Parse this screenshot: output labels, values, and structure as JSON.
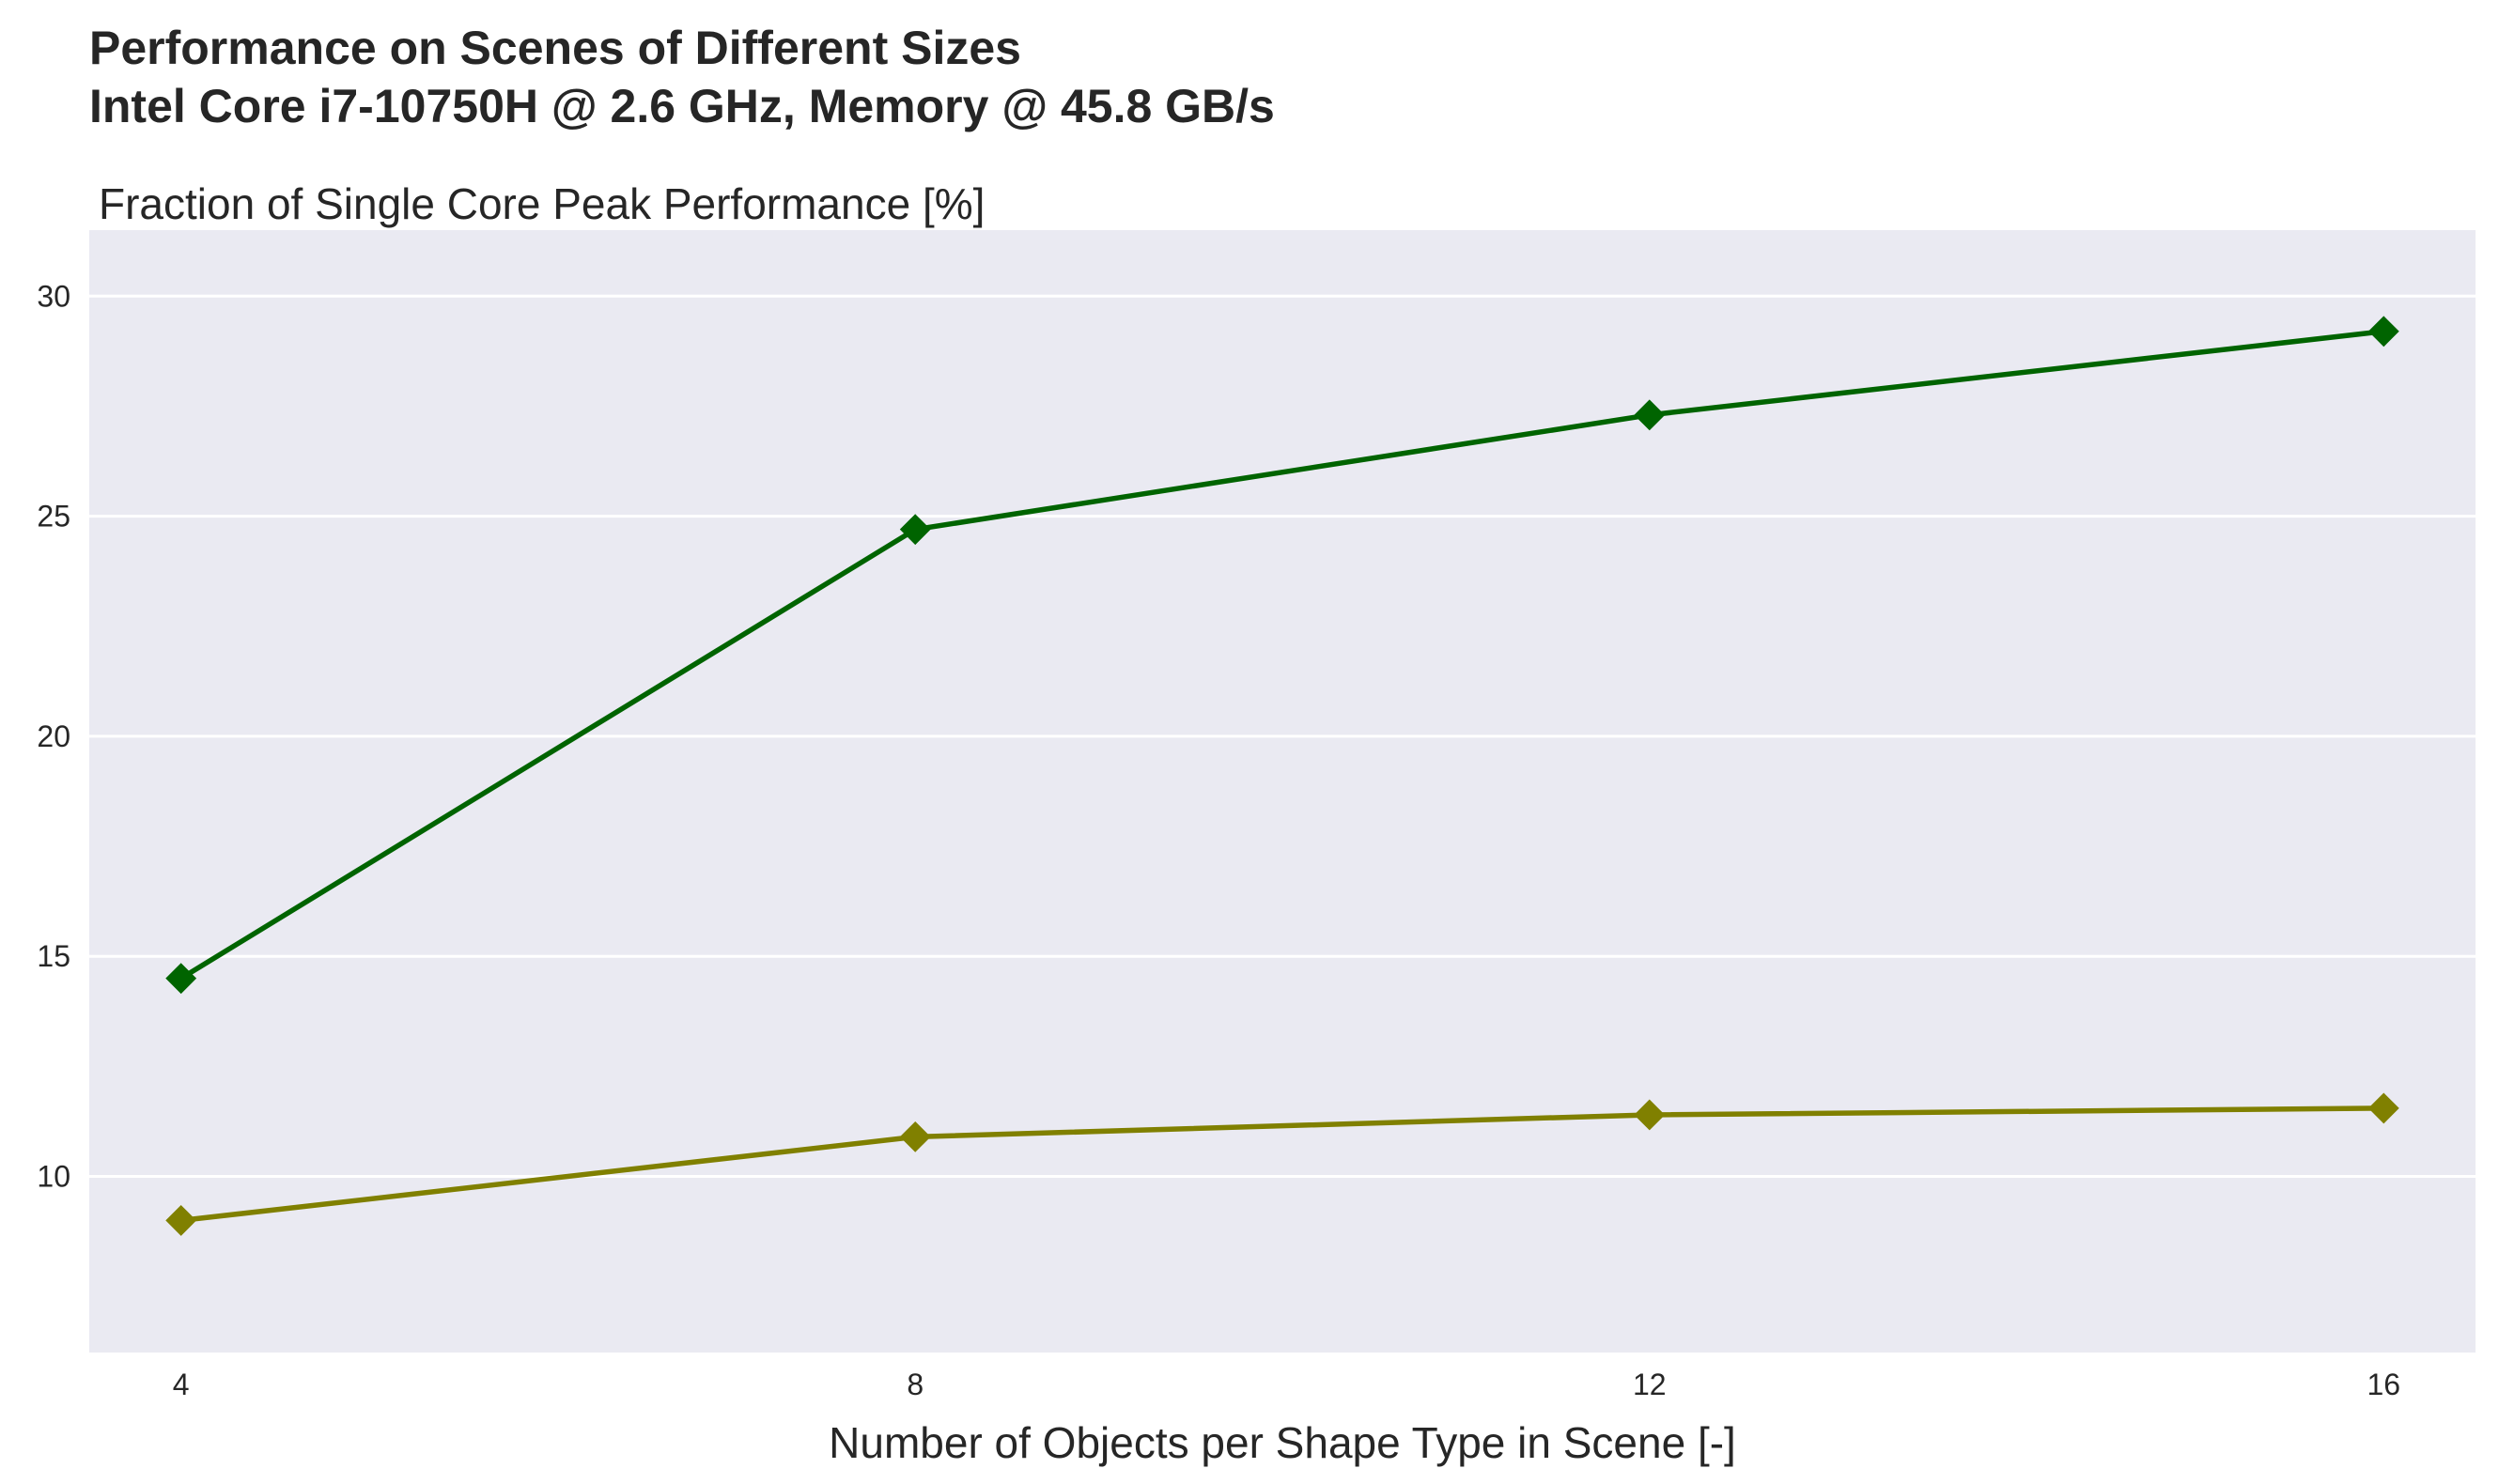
{
  "chart_data": {
    "type": "line",
    "title_lines": [
      "Performance on Scenes of Different Sizes",
      "Intel Core i7-10750H @ 2.6 GHz, Memory @ 45.8 GB/s"
    ],
    "ylabel": "Fraction of Single Core Peak Performance [%]",
    "xlabel": "Number of Objects per Shape Type in Scene [-]",
    "x": [
      4,
      8,
      12,
      16
    ],
    "x_ticks": [
      "4",
      "8",
      "12",
      "16"
    ],
    "y_ticks": [
      "10",
      "15",
      "20",
      "25",
      "30"
    ],
    "xlim": [
      3.5,
      16.5
    ],
    "ylim": [
      6,
      31.5
    ],
    "grid": true,
    "background_color": "#eaeaf2",
    "series": [
      {
        "values": [
          14.5,
          24.7,
          27.3,
          29.2
        ],
        "color": "#006400",
        "marker": "diamond"
      },
      {
        "values": [
          9.0,
          10.9,
          11.4,
          11.55
        ],
        "color": "#808000",
        "marker": "diamond"
      }
    ]
  }
}
